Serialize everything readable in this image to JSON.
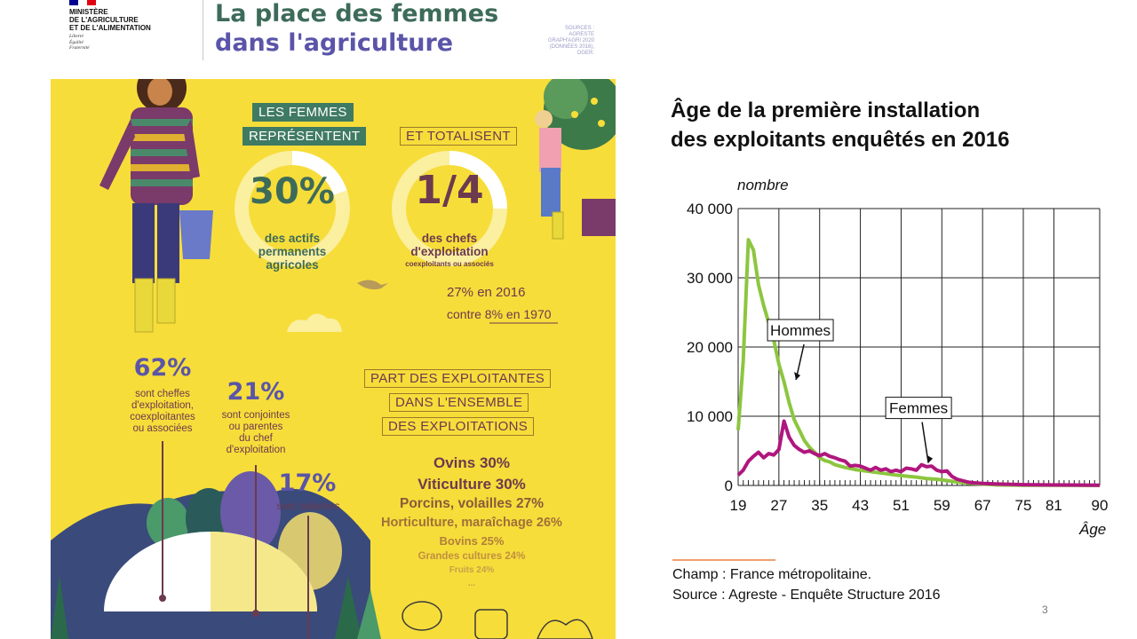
{
  "ministry": {
    "name_lines": [
      "MINISTÈRE",
      "DE L'AGRICULTURE",
      "ET DE L'ALIMENTATION"
    ],
    "motto_lines": [
      "Liberté",
      "Égalité",
      "Fraternité"
    ],
    "flag_colors": [
      "#000091",
      "#ffffff",
      "#e1000f"
    ]
  },
  "header": {
    "title_line1": "La place des femmes",
    "title_line2": "dans l'agriculture",
    "sources_lines": [
      "SOURCES :",
      "AGRESTE",
      "GRAPH'AGRI 2020",
      "(DONNÉES 2016),",
      "DGER."
    ]
  },
  "infographic": {
    "box1_line1": "LES FEMMES",
    "box1_line2": "REPRÉSENTENT",
    "pct_30": "30%",
    "text_30": [
      "des actifs",
      "permanents",
      "agricoles"
    ],
    "box2": "ET TOTALISENT",
    "quarter": "1/4",
    "quarter_text": [
      "des chefs",
      "d'exploitation"
    ],
    "quarter_sub": "coexploitants ou associés",
    "stat_2016": "27% en 2016",
    "stat_1970": "contre 8% en 1970",
    "pct_62": "62%",
    "text_62": [
      "sont cheffes",
      "d'exploitation,",
      "coexploitantes",
      "ou associées"
    ],
    "pct_21": "21%",
    "text_21": [
      "sont conjointes",
      "ou parentes",
      "du chef",
      "d'exploitation"
    ],
    "pct_17": "17%",
    "text_17": "sont salariées",
    "part_box_lines": [
      "PART DES EXPLOITANTES",
      "DANS L'ENSEMBLE",
      "DES EXPLOITATIONS"
    ],
    "shares": [
      "Ovins 30%",
      "Viticulture 30%",
      "Porcins, volailles 27%",
      "Horticulture, maraîchage 26%",
      "Bovins 25%",
      "Grandes cultures 24%",
      "Fruits 24%",
      "..."
    ],
    "colors": {
      "panel": "#f7dd3a",
      "green": "#3d6b5a",
      "plum": "#6b3a4f",
      "blue": "#5a55a8"
    }
  },
  "chart_data": {
    "type": "line",
    "title": "Âge de la première installation des exploitants enquêtés en 2016",
    "title_lines": [
      "Âge de la première installation",
      "des exploitants enquêtés en 2016"
    ],
    "xlabel": "Âge",
    "ylabel": "nombre",
    "xlim": [
      19,
      90
    ],
    "ylim": [
      0,
      40000
    ],
    "x_ticks": [
      19,
      27,
      35,
      43,
      51,
      59,
      67,
      75,
      81,
      90
    ],
    "y_ticks": [
      0,
      10000,
      20000,
      30000,
      40000
    ],
    "y_tick_labels": [
      "0",
      "10 000",
      "20 000",
      "30 000",
      "40 000"
    ],
    "grid": true,
    "series": [
      {
        "name": "Hommes",
        "color": "#8cc63f",
        "points": [
          [
            19,
            8000
          ],
          [
            20,
            18000
          ],
          [
            21,
            35500
          ],
          [
            22,
            34000
          ],
          [
            23,
            29000
          ],
          [
            24,
            26000
          ],
          [
            25,
            23500
          ],
          [
            26,
            21000
          ],
          [
            27,
            17500
          ],
          [
            28,
            15000
          ],
          [
            29,
            12000
          ],
          [
            30,
            9500
          ],
          [
            31,
            8000
          ],
          [
            32,
            6500
          ],
          [
            33,
            5500
          ],
          [
            34,
            4800
          ],
          [
            35,
            4000
          ],
          [
            36,
            3600
          ],
          [
            37,
            3400
          ],
          [
            38,
            3000
          ],
          [
            39,
            2800
          ],
          [
            40,
            2600
          ],
          [
            42,
            2300
          ],
          [
            44,
            2100
          ],
          [
            46,
            1900
          ],
          [
            48,
            1700
          ],
          [
            50,
            1500
          ],
          [
            52,
            1350
          ],
          [
            54,
            1200
          ],
          [
            56,
            1000
          ],
          [
            58,
            900
          ],
          [
            60,
            700
          ],
          [
            62,
            500
          ],
          [
            64,
            350
          ],
          [
            66,
            250
          ],
          [
            68,
            150
          ],
          [
            70,
            80
          ],
          [
            75,
            40
          ],
          [
            80,
            20
          ],
          [
            85,
            10
          ],
          [
            90,
            0
          ]
        ]
      },
      {
        "name": "Femmes",
        "color": "#b0167e",
        "points": [
          [
            19,
            1500
          ],
          [
            20,
            2200
          ],
          [
            21,
            3500
          ],
          [
            22,
            4200
          ],
          [
            23,
            4800
          ],
          [
            24,
            4000
          ],
          [
            25,
            4600
          ],
          [
            26,
            4400
          ],
          [
            27,
            5200
          ],
          [
            28,
            9300
          ],
          [
            29,
            7000
          ],
          [
            30,
            5800
          ],
          [
            31,
            5200
          ],
          [
            32,
            4800
          ],
          [
            33,
            5000
          ],
          [
            34,
            4600
          ],
          [
            35,
            4300
          ],
          [
            36,
            4600
          ],
          [
            37,
            4200
          ],
          [
            38,
            4000
          ],
          [
            39,
            3700
          ],
          [
            40,
            3500
          ],
          [
            41,
            2800
          ],
          [
            42,
            2900
          ],
          [
            43,
            2800
          ],
          [
            44,
            2500
          ],
          [
            45,
            2200
          ],
          [
            46,
            2600
          ],
          [
            47,
            2200
          ],
          [
            48,
            2400
          ],
          [
            49,
            2000
          ],
          [
            50,
            2200
          ],
          [
            51,
            2000
          ],
          [
            52,
            2500
          ],
          [
            53,
            2400
          ],
          [
            54,
            2200
          ],
          [
            55,
            3000
          ],
          [
            56,
            2700
          ],
          [
            57,
            2800
          ],
          [
            58,
            2200
          ],
          [
            59,
            2000
          ],
          [
            60,
            2100
          ],
          [
            61,
            1300
          ],
          [
            62,
            900
          ],
          [
            63,
            700
          ],
          [
            64,
            500
          ],
          [
            65,
            400
          ],
          [
            67,
            300
          ],
          [
            70,
            200
          ],
          [
            75,
            120
          ],
          [
            80,
            80
          ],
          [
            85,
            60
          ],
          [
            90,
            40
          ]
        ]
      }
    ],
    "annotations": [
      {
        "text": "Hommes",
        "x": 30,
        "y": 15000
      },
      {
        "text": "Femmes",
        "x": 56,
        "y": 3000
      }
    ],
    "footnote_lines": [
      "Champ : France métropolitaine.",
      "Source : Agreste - Enquête Structure 2016"
    ]
  },
  "page_number": "3"
}
